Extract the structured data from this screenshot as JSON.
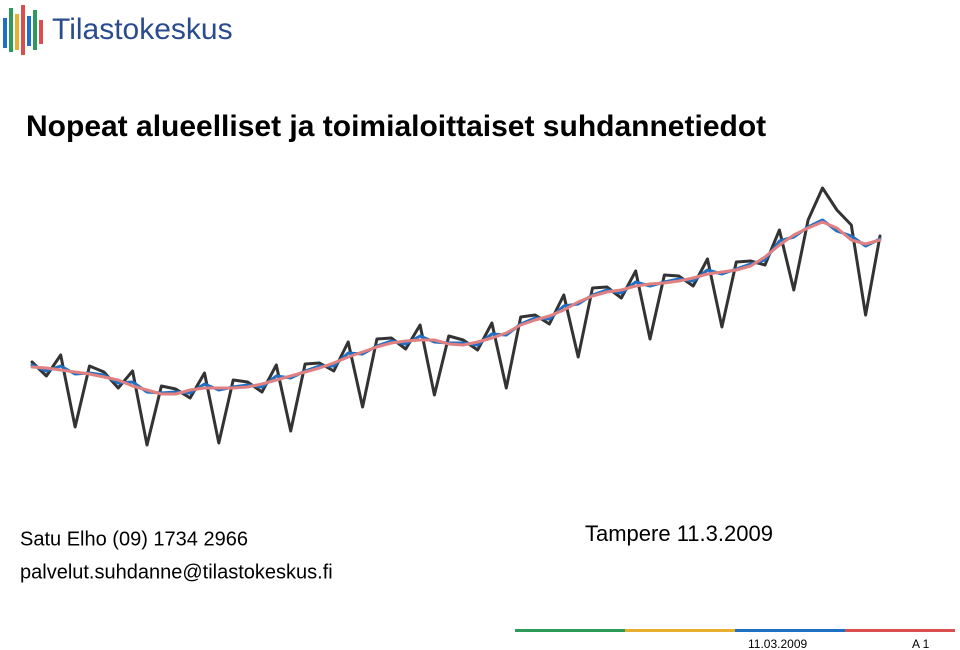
{
  "logo": "Tilastokeskus",
  "title": "Nopeat alueelliset ja toimialoittaiset suhdannetiedot",
  "contact": [
    "Satu Elho (09) 1734 2966",
    "palvelut.suhdanne@tilastokeskus.fi"
  ],
  "place_date": "Tampere 11.3.2009",
  "footer": {
    "date": "11.03.2009",
    "page": "A 1"
  },
  "chart_data": {
    "type": "line",
    "ylim": [
      0,
      300
    ],
    "series": [
      {
        "color": "#333333",
        "values": [
          88,
          74,
          95,
          23,
          84,
          78,
          62,
          79,
          5,
          64,
          61,
          52,
          77,
          7,
          70,
          68,
          58,
          85,
          19,
          86,
          87,
          79,
          108,
          43,
          111,
          112,
          101,
          125,
          55,
          114,
          110,
          100,
          127,
          62,
          133,
          135,
          126,
          155,
          93,
          162,
          163,
          152,
          179,
          111,
          175,
          174,
          164,
          191,
          123,
          188,
          189,
          185,
          220,
          160,
          230,
          262,
          240,
          225,
          135,
          214
        ]
      },
      {
        "color": "#1f6fc5",
        "values": [
          85,
          79,
          84,
          76,
          77,
          75,
          67,
          68,
          58,
          57,
          58,
          57,
          66,
          60,
          63,
          65,
          63,
          74,
          72,
          79,
          84,
          84,
          97,
          96,
          104,
          109,
          106,
          114,
          108,
          107,
          107,
          105,
          116,
          115,
          126,
          132,
          131,
          144,
          146,
          155,
          160,
          157,
          168,
          164,
          168,
          171,
          169,
          180,
          176,
          181,
          186,
          190,
          209,
          213,
          223,
          230,
          219,
          214,
          204,
          211
        ]
      },
      {
        "color": "#e08080",
        "values": [
          83,
          82,
          80,
          78,
          76,
          73,
          70,
          64,
          60,
          56,
          56,
          60,
          62,
          62,
          62,
          63,
          66,
          70,
          74,
          78,
          82,
          87,
          93,
          98,
          103,
          107,
          109,
          110,
          110,
          106,
          105,
          108,
          112,
          117,
          125,
          130,
          134,
          140,
          148,
          154,
          158,
          160,
          164,
          166,
          167,
          169,
          172,
          176,
          178,
          180,
          184,
          193,
          205,
          215,
          222,
          228,
          222,
          210,
          206,
          210
        ]
      }
    ]
  }
}
